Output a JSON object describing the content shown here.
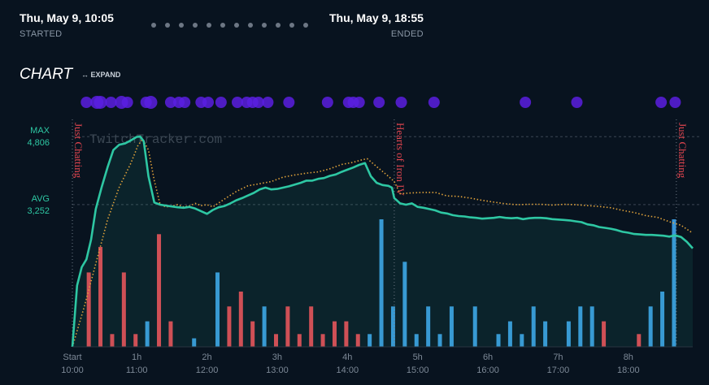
{
  "header": {
    "start_date": "Thu, May 9, 10:05",
    "start_label": "STARTED",
    "end_date": "Thu, May 9, 18:55",
    "end_label": "ENDED",
    "pager_dots": 12
  },
  "section": {
    "title": "CHART",
    "expand_label": "EXPAND"
  },
  "watermark": "TwitchTracker.com",
  "colors": {
    "background": "#08131f",
    "viewers": "#2ec7a3",
    "dotted": "#e0a23a",
    "bar_red": "#e0454f",
    "bar_blue": "#3a96d8",
    "dot_purple": "#5a1fe0"
  },
  "chart_data": {
    "type": "line",
    "x_unit": "minutes since start",
    "xlim": [
      0,
      530
    ],
    "ylim": [
      0,
      5200
    ],
    "x_ticks": [
      {
        "x": 0,
        "label": "Start",
        "time": "10:00"
      },
      {
        "x": 55,
        "label": "1h",
        "time": "11:00"
      },
      {
        "x": 115,
        "label": "2h",
        "time": "12:00"
      },
      {
        "x": 175,
        "label": "3h",
        "time": "13:00"
      },
      {
        "x": 235,
        "label": "4h",
        "time": "14:00"
      },
      {
        "x": 295,
        "label": "5h",
        "time": "15:00"
      },
      {
        "x": 355,
        "label": "6h",
        "time": "16:00"
      },
      {
        "x": 415,
        "label": "7h",
        "time": "17:00"
      },
      {
        "x": 475,
        "label": "8h",
        "time": "18:00"
      }
    ],
    "reference_lines": [
      {
        "label": "MAX",
        "value_label": "4,806",
        "value": 4806
      },
      {
        "label": "AVG",
        "value_label": "3,252",
        "value": 3252
      }
    ],
    "games": [
      {
        "name": "Just Chatting",
        "x": 0
      },
      {
        "name": "Hearts of Iron IV",
        "x": 275
      },
      {
        "name": "Just Chatting",
        "x": 516
      }
    ],
    "series": [
      {
        "style": "solid",
        "x": [
          0,
          4,
          8,
          12,
          16,
          20,
          25,
          30,
          35,
          40,
          45,
          50,
          55,
          58,
          61,
          65,
          70,
          75,
          80,
          85,
          90,
          95,
          100,
          105,
          110,
          115,
          120,
          125,
          130,
          135,
          140,
          145,
          150,
          155,
          160,
          165,
          170,
          175,
          180,
          185,
          190,
          195,
          200,
          205,
          210,
          215,
          220,
          225,
          230,
          235,
          240,
          245,
          250,
          255,
          260,
          265,
          270,
          273,
          275,
          278,
          280,
          285,
          290,
          295,
          300,
          305,
          310,
          315,
          320,
          325,
          330,
          335,
          340,
          345,
          350,
          355,
          360,
          365,
          370,
          375,
          380,
          385,
          390,
          395,
          400,
          405,
          410,
          415,
          420,
          425,
          430,
          435,
          440,
          445,
          450,
          455,
          460,
          465,
          470,
          475,
          480,
          485,
          490,
          495,
          500,
          505,
          510,
          515,
          520,
          525,
          530
        ],
        "y": [
          0,
          1400,
          1820,
          2000,
          2450,
          3150,
          3650,
          4100,
          4500,
          4620,
          4650,
          4720,
          4800,
          4806,
          4700,
          3900,
          3300,
          3250,
          3230,
          3210,
          3190,
          3180,
          3200,
          3160,
          3100,
          3040,
          3130,
          3190,
          3220,
          3280,
          3350,
          3400,
          3460,
          3520,
          3600,
          3640,
          3600,
          3610,
          3640,
          3670,
          3710,
          3750,
          3800,
          3800,
          3840,
          3860,
          3910,
          3940,
          4000,
          4050,
          4100,
          4160,
          4200,
          3900,
          3750,
          3700,
          3680,
          3640,
          3400,
          3330,
          3280,
          3250,
          3280,
          3200,
          3180,
          3150,
          3120,
          3070,
          3050,
          3010,
          2990,
          2980,
          2960,
          2950,
          2930,
          2940,
          2950,
          2970,
          2950,
          2940,
          2950,
          2920,
          2940,
          2950,
          2950,
          2940,
          2920,
          2910,
          2900,
          2890,
          2870,
          2850,
          2800,
          2780,
          2740,
          2720,
          2700,
          2670,
          2630,
          2610,
          2580,
          2570,
          2560,
          2560,
          2550,
          2540,
          2520,
          2550,
          2510,
          2400,
          2250
        ]
      },
      {
        "style": "dotted",
        "x": [
          0,
          10,
          20,
          30,
          40,
          50,
          56,
          60,
          65,
          70,
          75,
          80,
          85,
          90,
          95,
          100,
          105,
          110,
          115,
          120,
          130,
          140,
          150,
          160,
          170,
          180,
          190,
          200,
          210,
          220,
          230,
          240,
          248,
          252,
          260,
          270,
          275,
          280,
          290,
          300,
          310,
          320,
          330,
          340,
          350,
          360,
          370,
          380,
          390,
          400,
          410,
          420,
          430,
          440,
          450,
          460,
          470,
          480,
          490,
          500,
          510,
          520,
          525,
          530
        ],
        "y": [
          0,
          900,
          1900,
          2900,
          3650,
          4200,
          4600,
          4750,
          4500,
          3800,
          3250,
          3200,
          3220,
          3250,
          3200,
          3220,
          3280,
          3230,
          3250,
          3200,
          3380,
          3550,
          3680,
          3730,
          3780,
          3880,
          3930,
          3970,
          4000,
          4070,
          4170,
          4220,
          4280,
          4300,
          4120,
          3900,
          3780,
          3500,
          3520,
          3530,
          3530,
          3450,
          3440,
          3400,
          3350,
          3310,
          3270,
          3250,
          3260,
          3260,
          3240,
          3260,
          3250,
          3230,
          3210,
          3180,
          3120,
          3070,
          3000,
          2960,
          2860,
          2780,
          2690,
          2600
        ]
      }
    ],
    "bars": [
      {
        "x": 14,
        "h": 0.35,
        "color": "red"
      },
      {
        "x": 24,
        "h": 0.47,
        "color": "red"
      },
      {
        "x": 34,
        "h": 0.06,
        "color": "red"
      },
      {
        "x": 44,
        "h": 0.35,
        "color": "red"
      },
      {
        "x": 54,
        "h": 0.06,
        "color": "red"
      },
      {
        "x": 64,
        "h": 0.12,
        "color": "blue"
      },
      {
        "x": 74,
        "h": 0.53,
        "color": "red"
      },
      {
        "x": 84,
        "h": 0.12,
        "color": "red"
      },
      {
        "x": 104,
        "h": 0.04,
        "color": "blue"
      },
      {
        "x": 124,
        "h": 0.35,
        "color": "blue"
      },
      {
        "x": 134,
        "h": 0.19,
        "color": "red"
      },
      {
        "x": 144,
        "h": 0.26,
        "color": "red"
      },
      {
        "x": 154,
        "h": 0.12,
        "color": "red"
      },
      {
        "x": 164,
        "h": 0.19,
        "color": "blue"
      },
      {
        "x": 174,
        "h": 0.06,
        "color": "red"
      },
      {
        "x": 184,
        "h": 0.19,
        "color": "red"
      },
      {
        "x": 194,
        "h": 0.06,
        "color": "red"
      },
      {
        "x": 204,
        "h": 0.19,
        "color": "red"
      },
      {
        "x": 214,
        "h": 0.06,
        "color": "red"
      },
      {
        "x": 224,
        "h": 0.12,
        "color": "red"
      },
      {
        "x": 234,
        "h": 0.12,
        "color": "red"
      },
      {
        "x": 244,
        "h": 0.06,
        "color": "red"
      },
      {
        "x": 254,
        "h": 0.06,
        "color": "blue"
      },
      {
        "x": 264,
        "h": 0.6,
        "color": "blue"
      },
      {
        "x": 274,
        "h": 0.19,
        "color": "blue"
      },
      {
        "x": 284,
        "h": 0.4,
        "color": "blue"
      },
      {
        "x": 294,
        "h": 0.06,
        "color": "blue"
      },
      {
        "x": 304,
        "h": 0.19,
        "color": "blue"
      },
      {
        "x": 314,
        "h": 0.06,
        "color": "blue"
      },
      {
        "x": 324,
        "h": 0.19,
        "color": "blue"
      },
      {
        "x": 344,
        "h": 0.19,
        "color": "blue"
      },
      {
        "x": 364,
        "h": 0.06,
        "color": "blue"
      },
      {
        "x": 374,
        "h": 0.12,
        "color": "blue"
      },
      {
        "x": 384,
        "h": 0.06,
        "color": "blue"
      },
      {
        "x": 394,
        "h": 0.19,
        "color": "blue"
      },
      {
        "x": 404,
        "h": 0.12,
        "color": "blue"
      },
      {
        "x": 424,
        "h": 0.12,
        "color": "blue"
      },
      {
        "x": 434,
        "h": 0.19,
        "color": "blue"
      },
      {
        "x": 444,
        "h": 0.19,
        "color": "blue"
      },
      {
        "x": 454,
        "h": 0.12,
        "color": "red"
      },
      {
        "x": 484,
        "h": 0.06,
        "color": "red"
      },
      {
        "x": 494,
        "h": 0.19,
        "color": "blue"
      },
      {
        "x": 504,
        "h": 0.26,
        "color": "blue"
      },
      {
        "x": 514,
        "h": 0.6,
        "color": "blue"
      }
    ],
    "event_dots": [
      {
        "x": 12,
        "size": "m"
      },
      {
        "x": 21,
        "size": "l"
      },
      {
        "x": 24,
        "size": "l"
      },
      {
        "x": 33,
        "size": "m"
      },
      {
        "x": 42,
        "size": "l"
      },
      {
        "x": 47,
        "size": "m"
      },
      {
        "x": 63,
        "size": "m"
      },
      {
        "x": 67,
        "size": "l"
      },
      {
        "x": 84,
        "size": "m"
      },
      {
        "x": 91,
        "size": "m"
      },
      {
        "x": 96,
        "size": "m"
      },
      {
        "x": 110,
        "size": "m"
      },
      {
        "x": 116,
        "size": "m"
      },
      {
        "x": 127,
        "size": "m"
      },
      {
        "x": 141,
        "size": "m"
      },
      {
        "x": 149,
        "size": "m"
      },
      {
        "x": 154,
        "size": "m"
      },
      {
        "x": 159,
        "size": "m"
      },
      {
        "x": 167,
        "size": "m"
      },
      {
        "x": 185,
        "size": "m"
      },
      {
        "x": 218,
        "size": "m"
      },
      {
        "x": 236,
        "size": "m"
      },
      {
        "x": 240,
        "size": "m"
      },
      {
        "x": 245,
        "size": "m"
      },
      {
        "x": 262,
        "size": "m"
      },
      {
        "x": 281,
        "size": "m"
      },
      {
        "x": 309,
        "size": "m"
      },
      {
        "x": 387,
        "size": "m"
      },
      {
        "x": 431,
        "size": "m"
      },
      {
        "x": 503,
        "size": "m"
      },
      {
        "x": 515,
        "size": "m"
      }
    ]
  }
}
